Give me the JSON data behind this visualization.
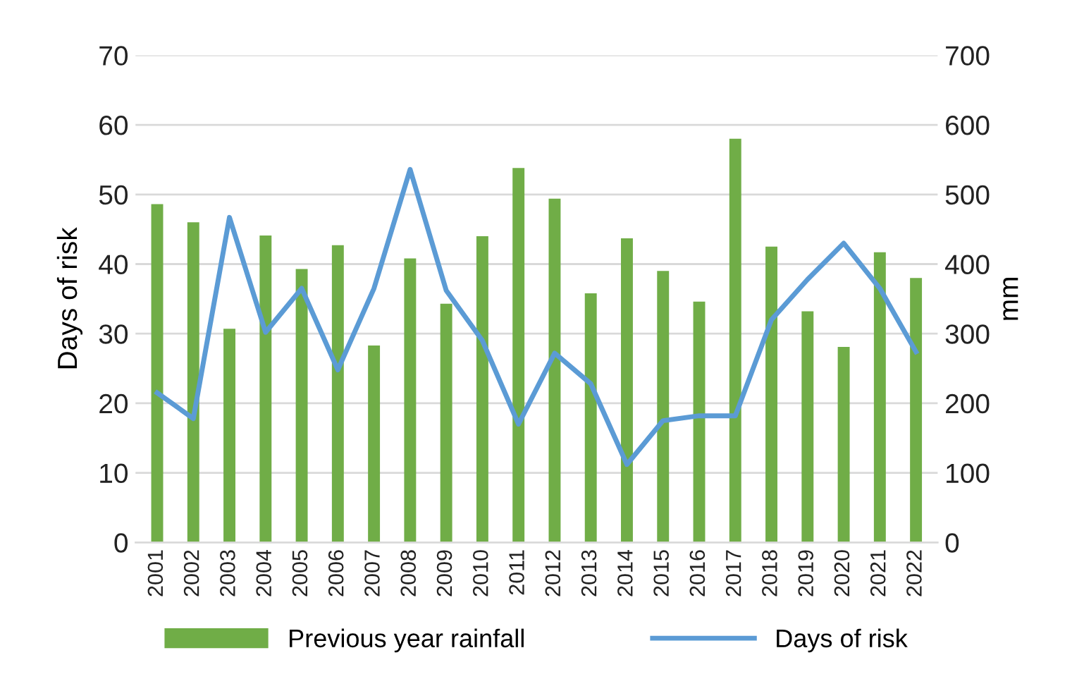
{
  "chart_data": {
    "type": "bar",
    "ylabel": "Days of risk",
    "y2label": "mm",
    "categories": [
      "2001",
      "2002",
      "2003",
      "2004",
      "2005",
      "2006",
      "2007",
      "2008",
      "2009",
      "2010",
      "2011",
      "2012",
      "2013",
      "2014",
      "2015",
      "2016",
      "2017",
      "2018",
      "2019",
      "2020",
      "2021",
      "2022"
    ],
    "series": [
      {
        "name": "Previous year rainfall",
        "axis": "y2",
        "color": "#70ad47",
        "values": [
          486,
          460,
          307,
          441,
          393,
          427,
          283,
          408,
          343,
          440,
          538,
          494,
          358,
          437,
          390,
          346,
          580,
          425,
          332,
          281,
          417,
          380
        ]
      },
      {
        "name": "Days of risk",
        "type": "line",
        "color": "#5b9bd5",
        "values": [
          21.5,
          17.8,
          46.7,
          30.2,
          36.5,
          24.8,
          36.5,
          53.6,
          36.2,
          29,
          17,
          27.2,
          22.8,
          11.2,
          17.5,
          18.2,
          18.2,
          32,
          37.8,
          43,
          36.5,
          27.4
        ]
      }
    ],
    "ylim": [
      0,
      70
    ],
    "yticks": [
      0,
      10,
      20,
      30,
      40,
      50,
      60,
      70
    ],
    "y2lim": [
      0,
      700
    ],
    "y2ticks": [
      0,
      100,
      200,
      300,
      400,
      500,
      600,
      700
    ],
    "grid": "y",
    "legend": "bottom",
    "marker": "none",
    "line_style": "solid"
  }
}
